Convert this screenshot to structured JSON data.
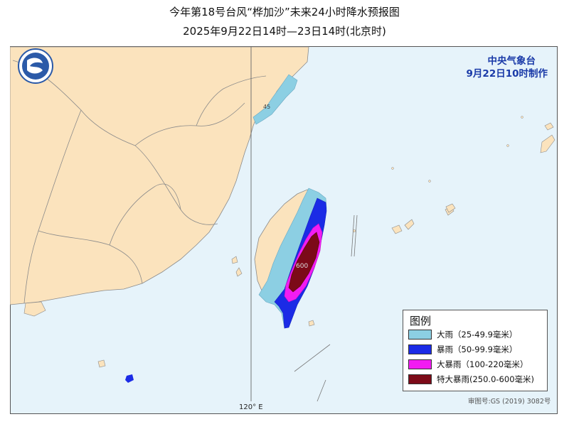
{
  "title": {
    "line1": "今年第18号台风“桦加沙”未来24小时降水预报图",
    "line2": "2025年9月22日14时—23日14时(北京时)"
  },
  "agency": {
    "name": "中央气象台",
    "issue_time": "9月22日10时制作"
  },
  "map": {
    "longitude_label": "120° E",
    "contour_value_600": "600",
    "contour_value_45": "45",
    "approval_number": "审图号:GS (2019) 3082号",
    "colors": {
      "land": "#fbe3bd",
      "sea": "#e6f3fa",
      "boundary": "#8a8a8a"
    }
  },
  "legend": {
    "title": "图例",
    "items": [
      {
        "label": "大雨（25-49.9毫米）",
        "color": "#8ccfe3"
      },
      {
        "label": "暴雨（50-99.9毫米）",
        "color": "#1b2be6"
      },
      {
        "label": "大暴雨（100-220毫米）",
        "color": "#f21cf2"
      },
      {
        "label": "特大暴雨(250.0-600毫米)",
        "color": "#7c0a18"
      }
    ]
  }
}
